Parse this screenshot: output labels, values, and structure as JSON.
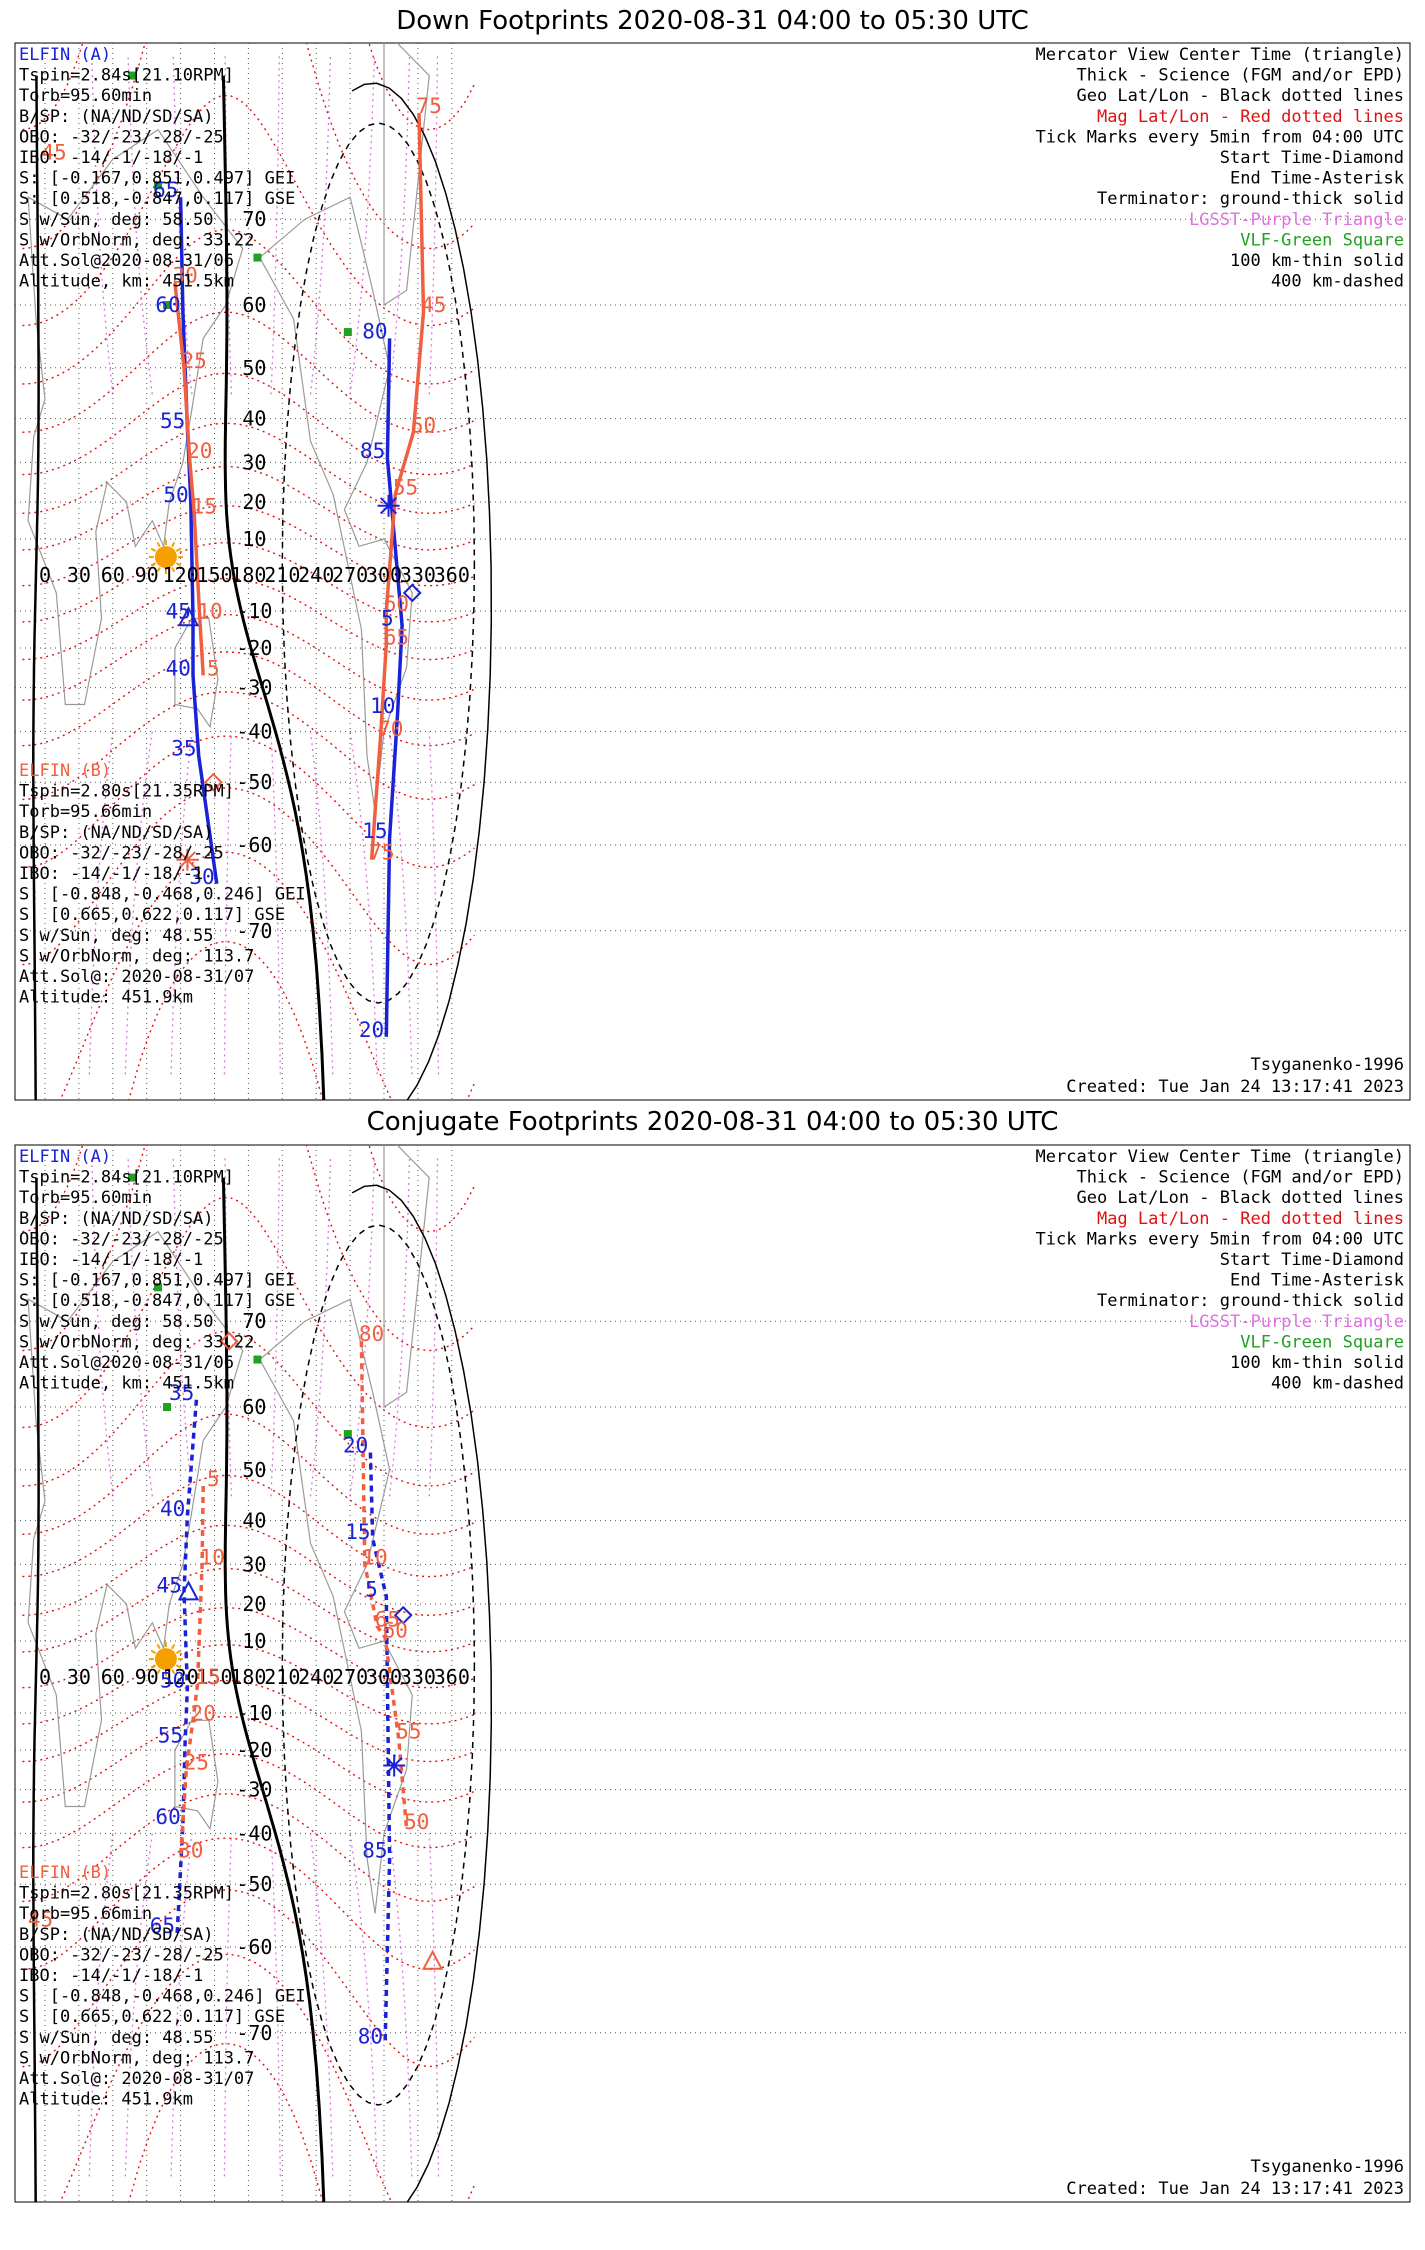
{
  "colors": {
    "blue": "#1a22d6",
    "orange": "#f06040",
    "geo_grid": "#000000",
    "mag_grid": "#e11010",
    "purple": "#e070e0",
    "green": "#22a022",
    "sun": "#f5a000",
    "coast": "#9a9a9a"
  },
  "icons": {
    "sun": "sun-icon",
    "start": "diamond-icon",
    "end": "asterisk-icon",
    "center": "triangle-icon",
    "vlf": "green-square-icon"
  },
  "lon_labels": [
    "0",
    "30",
    "60",
    "90",
    "120",
    "150",
    "180",
    "210",
    "240",
    "270",
    "300",
    "330",
    "360"
  ],
  "lat_labels": [
    "70",
    "60",
    "50",
    "40",
    "30",
    "20",
    "10",
    "-10",
    "-20",
    "-30",
    "-40",
    "-50",
    "-60",
    "-70"
  ],
  "legend": [
    {
      "text": "Mercator View Center Time (triangle)",
      "color": "#000000"
    },
    {
      "text": "Thick - Science (FGM and/or EPD)",
      "color": "#000000"
    },
    {
      "text": "Geo Lat/Lon - Black dotted lines",
      "color": "#000000"
    },
    {
      "text": "Mag Lat/Lon - Red dotted lines",
      "color": "#e11010"
    },
    {
      "text": "Tick Marks every 5min from 04:00 UTC",
      "color": "#000000"
    },
    {
      "text": "Start Time-Diamond",
      "color": "#000000"
    },
    {
      "text": "End Time-Asterisk",
      "color": "#000000"
    },
    {
      "text": "Terminator: ground-thick solid",
      "color": "#000000"
    },
    {
      "text": "LGSST-Purple Triangle",
      "color": "#e070e0"
    },
    {
      "text": "VLF-Green Square",
      "color": "#22a022"
    },
    {
      "text": "100 km-thin solid",
      "color": "#000000"
    },
    {
      "text": "400 km-dashed",
      "color": "#000000"
    }
  ],
  "elfin_a": {
    "name": "ELFIN (A)",
    "lines": [
      "Tspin=2.84s[21.10RPM]",
      "Torb=95.60min",
      "B/SP: (NA/ND/SD/SA)",
      "OBO: -32/-23/-28/-25",
      "IBO: -14/-1/-18/-1",
      "S: [-0.167,0.851,0.497] GEI",
      "S: [0.518,-0.847,0.117] GSE",
      "S w/Sun, deg: 58.50",
      "S w/OrbNorm, deg: 33.22",
      "Att.Sol@2020-08-31/06",
      "Altitude, km: 451.5km"
    ]
  },
  "elfin_b": {
    "name": "ELFIN (B)",
    "lines": [
      "Tspin=2.80s[21.35RPM]",
      "Torb=95.66min",
      "B/SP: (NA/ND/SD/SA)",
      "OBO: -32/-23/-28/-25",
      "IBO: -14/-1/-18/-1",
      "S: [-0.848,-0.468,0.246] GEI",
      "S: [0.665,0.622,0.117] GSE",
      "S w/Sun, deg: 48.55",
      "S w/OrbNorm, deg: 113.7",
      "Att.Sol@: 2020-08-31/07",
      "Altitude: 451.9km"
    ]
  },
  "model": "Tsyganenko-1996",
  "created": "Created: Tue Jan 24 13:17:41 2023",
  "panels": [
    {
      "title": "Down Footprints 2020-08-31 04:00 to 05:30 UTC",
      "mag_labels": [
        {
          "t": "30",
          "lon": 124,
          "lat": 63
        },
        {
          "t": "25",
          "lon": 132,
          "lat": 50
        },
        {
          "t": "20",
          "lon": 137,
          "lat": 31
        },
        {
          "t": "15",
          "lon": 141,
          "lat": 17
        },
        {
          "t": "10",
          "lon": 146,
          "lat": -12
        },
        {
          "t": "5",
          "lon": 149,
          "lat": -27
        },
        {
          "t": "75",
          "lon": 340,
          "lat": 78
        },
        {
          "t": "45",
          "lon": 344,
          "lat": 59
        },
        {
          "t": "50",
          "lon": 335,
          "lat": 37
        },
        {
          "t": "55",
          "lon": 319,
          "lat": 22
        },
        {
          "t": "60",
          "lon": 311,
          "lat": -10
        },
        {
          "t": "65",
          "lon": 311,
          "lat": -19
        },
        {
          "t": "70",
          "lon": 306,
          "lat": -41
        },
        {
          "t": "75",
          "lon": 298,
          "lat": -62
        },
        {
          "t": "45",
          "lon": 8,
          "lat": 75
        }
      ],
      "tracks": [
        {
          "sat": "A",
          "style": "solid",
          "ticks": [
            {
              "t": "65",
              "lon": 114,
              "lat": 72
            },
            {
              "t": "60",
              "lon": 116,
              "lat": 59
            },
            {
              "t": "55",
              "lon": 120,
              "lat": 38
            },
            {
              "t": "50",
              "lon": 123,
              "lat": 20
            },
            {
              "t": "45",
              "lon": 125,
              "lat": -12
            },
            {
              "t": "40",
              "lon": 125,
              "lat": -27
            },
            {
              "t": "35",
              "lon": 130,
              "lat": -45
            },
            {
              "t": "30",
              "lon": 146,
              "lat": -65
            },
            {
              "t": "80",
              "lon": 299,
              "lat": 55
            },
            {
              "t": "85",
              "lon": 297,
              "lat": 31
            },
            {
              "t": "5",
              "lon": 310,
              "lat": -14
            },
            {
              "t": "10",
              "lon": 306,
              "lat": -36
            },
            {
              "t": "15",
              "lon": 299,
              "lat": -59
            },
            {
              "t": "20",
              "lon": 296,
              "lat": -78
            }
          ]
        },
        {
          "sat": "B",
          "style": "solid",
          "ticks": []
        }
      ]
    },
    {
      "title": "Conjugate Footprints 2020-08-31 04:00 to 05:30 UTC",
      "mag_labels": [
        {
          "t": "5",
          "lon": 149,
          "lat": 47
        },
        {
          "t": "10",
          "lon": 148,
          "lat": 30
        },
        {
          "t": "15",
          "lon": 144,
          "lat": -2
        },
        {
          "t": "20",
          "lon": 140,
          "lat": -12
        },
        {
          "t": "25",
          "lon": 134,
          "lat": -25
        },
        {
          "t": "30",
          "lon": 129,
          "lat": -45
        },
        {
          "t": "80",
          "lon": 289,
          "lat": 68
        },
        {
          "t": "10",
          "lon": 292,
          "lat": 30
        },
        {
          "t": "65",
          "lon": 303,
          "lat": 14
        },
        {
          "t": "60",
          "lon": 310,
          "lat": 11
        },
        {
          "t": "55",
          "lon": 322,
          "lat": -17
        },
        {
          "t": "50",
          "lon": 329,
          "lat": -39
        },
        {
          "t": "45",
          "lon": -4,
          "lat": -57
        }
      ],
      "tracks": [
        {
          "sat": "A",
          "style": "dashed",
          "ticks": [
            {
              "t": "35",
              "lon": 128,
              "lat": 61
            },
            {
              "t": "40",
              "lon": 120,
              "lat": 41
            },
            {
              "t": "45",
              "lon": 117,
              "lat": 23
            },
            {
              "t": "50",
              "lon": 120,
              "lat": -3
            },
            {
              "t": "55",
              "lon": 118,
              "lat": -18
            },
            {
              "t": "60",
              "lon": 116,
              "lat": -38
            },
            {
              "t": "65",
              "lon": 111,
              "lat": -58
            },
            {
              "t": "20",
              "lon": 282,
              "lat": 53
            },
            {
              "t": "15",
              "lon": 284,
              "lat": 36
            },
            {
              "t": "5",
              "lon": 296,
              "lat": 22
            },
            {
              "t": "85",
              "lon": 299,
              "lat": -45
            },
            {
              "t": "80",
              "lon": 295,
              "lat": -71
            }
          ]
        },
        {
          "sat": "B",
          "style": "dashed",
          "ticks": []
        }
      ]
    }
  ]
}
